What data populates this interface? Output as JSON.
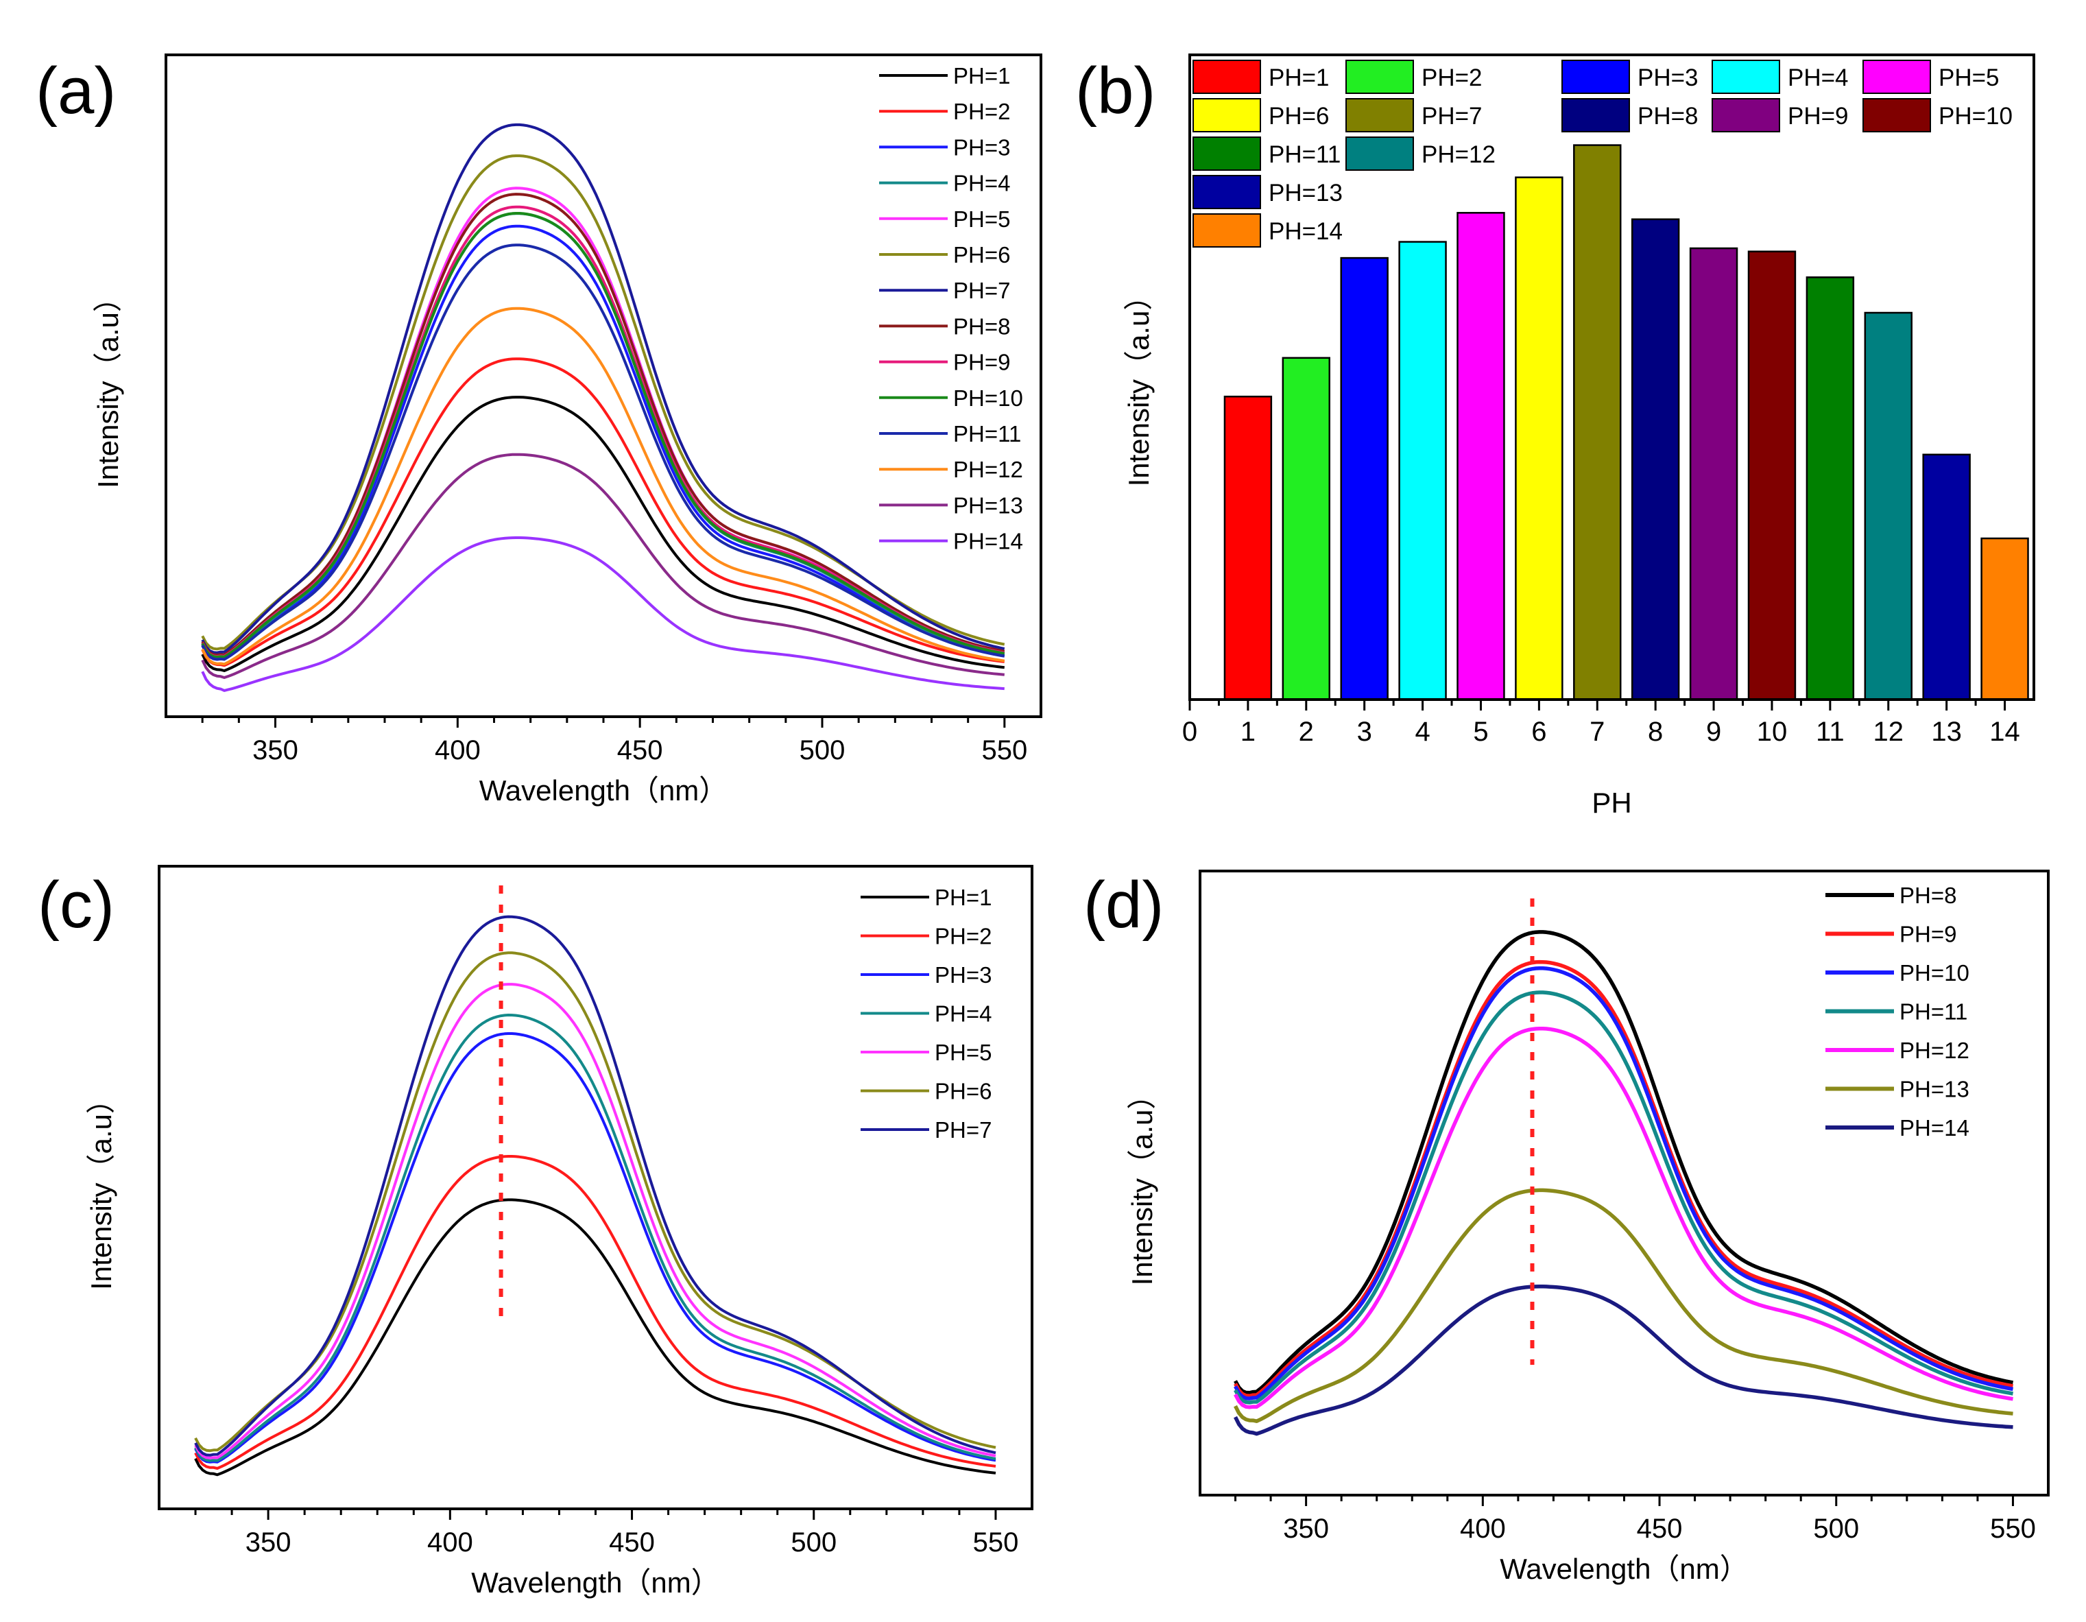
{
  "chart_data": [
    {
      "id": "a",
      "type": "line",
      "panel_label": "(a)",
      "xlabel": "Wavelength（nm）",
      "ylabel": "Intensity（a.u）",
      "xlim": [
        320,
        560
      ],
      "ylim": [
        0,
        1.05
      ],
      "xticks": [
        350,
        400,
        450,
        500,
        550
      ],
      "y_ticks_shown": false,
      "legend": "top-right",
      "series": [
        {
          "name": "PH=1",
          "color": "#000000",
          "peak": 0.5,
          "tail": 0.07
        },
        {
          "name": "PH=2",
          "color": "#ff1a1a",
          "peak": 0.56,
          "tail": 0.078
        },
        {
          "name": "PH=3",
          "color": "#1a1aff",
          "peak": 0.77,
          "tail": 0.083
        },
        {
          "name": "PH=4",
          "color": "#138a8a",
          "peak": 0.79,
          "tail": 0.085
        },
        {
          "name": "PH=5",
          "color": "#ff33ff",
          "peak": 0.83,
          "tail": 0.086
        },
        {
          "name": "PH=6",
          "color": "#8a8a1a",
          "peak": 0.88,
          "tail": 0.1
        },
        {
          "name": "PH=7",
          "color": "#1a1a99",
          "peak": 0.93,
          "tail": 0.092
        },
        {
          "name": "PH=8",
          "color": "#8b1a1a",
          "peak": 0.82,
          "tail": 0.09
        },
        {
          "name": "PH=9",
          "color": "#e6197a",
          "peak": 0.8,
          "tail": 0.088
        },
        {
          "name": "PH=10",
          "color": "#1a8a1a",
          "peak": 0.79,
          "tail": 0.087
        },
        {
          "name": "PH=11",
          "color": "#1a2aaa",
          "peak": 0.74,
          "tail": 0.084
        },
        {
          "name": "PH=12",
          "color": "#ff8c1a",
          "peak": 0.64,
          "tail": 0.078
        },
        {
          "name": "PH=13",
          "color": "#8a2a8a",
          "peak": 0.41,
          "tail": 0.06
        },
        {
          "name": "PH=14",
          "color": "#9933ff",
          "peak": 0.28,
          "tail": 0.04
        }
      ]
    },
    {
      "id": "b",
      "type": "bar",
      "panel_label": "(b)",
      "xlabel": "PH",
      "ylabel": "Intensity（a.u）",
      "xlim": [
        0,
        14.5
      ],
      "ylim": [
        0,
        1.0
      ],
      "xticks": [
        "0",
        "1",
        "2",
        "3",
        "4",
        "5",
        "6",
        "7",
        "8",
        "9",
        "10",
        "11",
        "12",
        "13",
        "14"
      ],
      "y_ticks_shown": false,
      "legend": "top-left",
      "categories": [
        "1",
        "2",
        "3",
        "4",
        "5",
        "6",
        "7",
        "8",
        "9",
        "10",
        "11",
        "12",
        "13",
        "14"
      ],
      "values": [
        0.47,
        0.53,
        0.685,
        0.71,
        0.755,
        0.81,
        0.86,
        0.745,
        0.7,
        0.695,
        0.655,
        0.6,
        0.38,
        0.25
      ],
      "legend_entries": [
        {
          "name": "PH=1",
          "color": "#ff0000"
        },
        {
          "name": "PH=2",
          "color": "#22ee22"
        },
        {
          "name": "PH=3",
          "color": "#0000ff"
        },
        {
          "name": "PH=4",
          "color": "#00ffff"
        },
        {
          "name": "PH=5",
          "color": "#ff00ff"
        },
        {
          "name": "PH=6",
          "color": "#ffff00"
        },
        {
          "name": "PH=7",
          "color": "#808000"
        },
        {
          "name": "PH=8",
          "color": "#000080"
        },
        {
          "name": "PH=9",
          "color": "#800080"
        },
        {
          "name": "PH=10",
          "color": "#800000"
        },
        {
          "name": "PH=11",
          "color": "#008000"
        },
        {
          "name": "PH=12",
          "color": "#008080"
        },
        {
          "name": "PH=13",
          "color": "#0000a0"
        },
        {
          "name": "PH=14",
          "color": "#ff8000"
        }
      ]
    },
    {
      "id": "c",
      "type": "line",
      "panel_label": "(c)",
      "xlabel": "Wavelength（nm）",
      "ylabel": "Intensity（a.u）",
      "xlim": [
        320,
        560
      ],
      "ylim": [
        0,
        1.05
      ],
      "xticks": [
        350,
        400,
        450,
        500,
        550
      ],
      "y_ticks_shown": false,
      "legend": "top-right",
      "peak_marker_x": 414,
      "series": [
        {
          "name": "PH=1",
          "color": "#000000",
          "peak": 0.5,
          "tail": 0.05
        },
        {
          "name": "PH=2",
          "color": "#ff1a1a",
          "peak": 0.57,
          "tail": 0.06
        },
        {
          "name": "PH=3",
          "color": "#1a1aff",
          "peak": 0.77,
          "tail": 0.066
        },
        {
          "name": "PH=4",
          "color": "#138a8a",
          "peak": 0.8,
          "tail": 0.068
        },
        {
          "name": "PH=5",
          "color": "#ff33ff",
          "peak": 0.85,
          "tail": 0.072
        },
        {
          "name": "PH=6",
          "color": "#8a8a1a",
          "peak": 0.9,
          "tail": 0.085
        },
        {
          "name": "PH=7",
          "color": "#1a1a99",
          "peak": 0.96,
          "tail": 0.075
        }
      ]
    },
    {
      "id": "d",
      "type": "line",
      "panel_label": "(d)",
      "xlabel": "Wavelength（nm）",
      "ylabel": "Intensity（a.u）",
      "xlim": [
        320,
        560
      ],
      "ylim": [
        0,
        1.05
      ],
      "xticks": [
        350,
        400,
        450,
        500,
        550
      ],
      "y_ticks_shown": false,
      "legend": "top-right",
      "peak_marker_x": 414,
      "series": [
        {
          "name": "PH=8",
          "color": "#000000",
          "peak": 0.93,
          "tail": 0.175
        },
        {
          "name": "PH=9",
          "color": "#ff1a1a",
          "peak": 0.88,
          "tail": 0.17
        },
        {
          "name": "PH=10",
          "color": "#1a1aff",
          "peak": 0.87,
          "tail": 0.165
        },
        {
          "name": "PH=11",
          "color": "#138a8a",
          "peak": 0.83,
          "tail": 0.158
        },
        {
          "name": "PH=12",
          "color": "#ff1aff",
          "peak": 0.77,
          "tail": 0.15
        },
        {
          "name": "PH=13",
          "color": "#8a8a1a",
          "peak": 0.5,
          "tail": 0.13
        },
        {
          "name": "PH=14",
          "color": "#1a1a80",
          "peak": 0.34,
          "tail": 0.11
        }
      ]
    }
  ]
}
